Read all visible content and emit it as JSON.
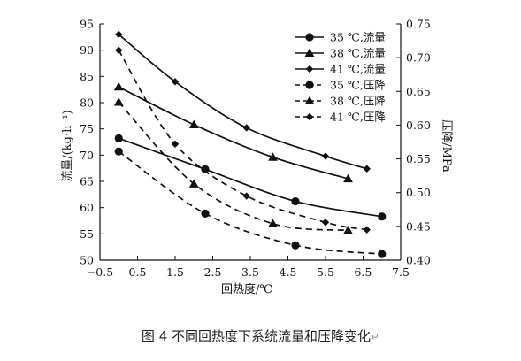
{
  "caption": "图 4  不同回热度下系统流量和压降变化",
  "caption_mark": "↵",
  "chart_data": {
    "type": "line",
    "title": "",
    "xlabel": "回热度/℃",
    "ylabel_left": "流量/(kg·h⁻¹)",
    "ylabel_right": "压降/MPa",
    "xlim": [
      -0.5,
      7.5
    ],
    "ylim_left": [
      50,
      95
    ],
    "ylim_right": [
      0.4,
      0.75
    ],
    "x_ticks": [
      "−0.5",
      "0.5",
      "1.5",
      "2.5",
      "3.5",
      "4.5",
      "5.5",
      "6.5",
      "7.5"
    ],
    "y_left_ticks": [
      "50",
      "55",
      "60",
      "65",
      "70",
      "75",
      "80",
      "85",
      "90",
      "95"
    ],
    "y_right_ticks": [
      "0.40",
      "0.45",
      "0.50",
      "0.55",
      "0.60",
      "0.65",
      "0.70",
      "0.75"
    ],
    "grid": false,
    "legend_position": "top-right",
    "series": [
      {
        "name": "35 ℃,流量",
        "axis": "left",
        "style": "solid",
        "marker": "circle",
        "x": [
          0.0,
          2.3,
          4.7,
          7.0
        ],
        "y": [
          73.2,
          67.3,
          61.2,
          58.3
        ]
      },
      {
        "name": "38 ℃,流量",
        "axis": "left",
        "style": "solid",
        "marker": "triangle",
        "x": [
          0.0,
          2.0,
          4.1,
          6.1
        ],
        "y": [
          83.0,
          75.8,
          69.6,
          65.5
        ]
      },
      {
        "name": "41 ℃,流量",
        "axis": "left",
        "style": "solid",
        "marker": "diamond",
        "x": [
          0.0,
          1.5,
          3.4,
          5.5,
          6.6
        ],
        "y": [
          93.0,
          84.0,
          75.2,
          69.8,
          67.4
        ]
      },
      {
        "name": "35 ℃,压降",
        "axis": "right",
        "style": "dashed",
        "marker": "circle",
        "x": [
          0.0,
          2.3,
          4.7,
          7.0
        ],
        "y": [
          0.561,
          0.469,
          0.422,
          0.409
        ]
      },
      {
        "name": "38 ℃,压降",
        "axis": "right",
        "style": "dashed",
        "marker": "triangle",
        "x": [
          0.0,
          2.0,
          4.1,
          6.1
        ],
        "y": [
          0.634,
          0.513,
          0.454,
          0.444
        ]
      },
      {
        "name": "41 ℃,压降",
        "axis": "right",
        "style": "dashed",
        "marker": "diamond",
        "x": [
          0.0,
          1.5,
          3.4,
          5.5,
          6.6
        ],
        "y": [
          0.711,
          0.572,
          0.495,
          0.456,
          0.445
        ]
      }
    ]
  }
}
